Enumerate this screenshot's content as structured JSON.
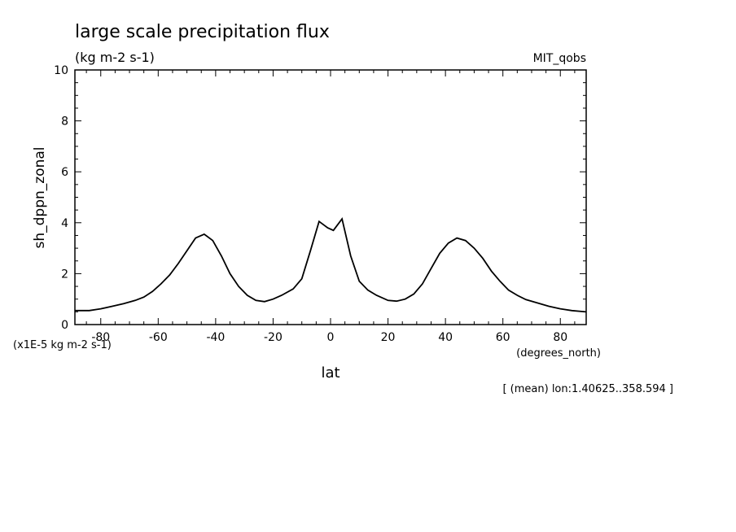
{
  "chart_data": {
    "type": "line",
    "title": "large scale precipitation flux",
    "subtitle": "(kg m-2 s-1)",
    "dataset_label": "MIT_qobs",
    "ylabel": "sh_dppn_zonal",
    "y_unit_label": "(x1E-5 kg m-2 s-1)",
    "xlabel": "lat",
    "x_unit_label": "(degrees_north)",
    "footnote": "[ (mean) lon:1.40625..358.594 ]",
    "xlim": [
      -89,
      89
    ],
    "ylim": [
      0,
      10
    ],
    "x_ticks": [
      -80,
      -60,
      -40,
      -20,
      0,
      20,
      40,
      60,
      80
    ],
    "x_tick_labels": [
      "-80",
      "-60",
      "-40",
      "-20",
      "0",
      "20",
      "40",
      "60",
      "80"
    ],
    "y_ticks": [
      0,
      2,
      4,
      6,
      8,
      10
    ],
    "y_tick_labels": [
      "0",
      "2",
      "4",
      "6",
      "8",
      "10"
    ],
    "grid": false,
    "x": [
      -89,
      -84,
      -80,
      -76,
      -72,
      -68,
      -65,
      -62,
      -59,
      -56,
      -53,
      -50,
      -47,
      -44,
      -41,
      -38,
      -35,
      -32,
      -29,
      -26,
      -23,
      -20,
      -17,
      -13,
      -10,
      -7,
      -4,
      -1,
      1,
      4,
      7,
      10,
      13,
      16,
      20,
      23,
      26,
      29,
      32,
      35,
      38,
      41,
      44,
      47,
      50,
      53,
      56,
      59,
      62,
      65,
      68,
      72,
      76,
      80,
      84,
      89
    ],
    "series": [
      {
        "values": [
          0.55,
          0.55,
          0.62,
          0.72,
          0.82,
          0.95,
          1.08,
          1.3,
          1.6,
          1.95,
          2.4,
          2.9,
          3.4,
          3.55,
          3.3,
          2.7,
          2.0,
          1.5,
          1.15,
          0.95,
          0.9,
          1.0,
          1.15,
          1.4,
          1.8,
          2.9,
          4.05,
          3.8,
          3.7,
          4.15,
          2.7,
          1.7,
          1.35,
          1.15,
          0.95,
          0.92,
          1.0,
          1.2,
          1.6,
          2.2,
          2.8,
          3.2,
          3.4,
          3.3,
          3.0,
          2.6,
          2.1,
          1.7,
          1.35,
          1.15,
          0.98,
          0.85,
          0.72,
          0.62,
          0.55,
          0.5
        ]
      }
    ]
  }
}
